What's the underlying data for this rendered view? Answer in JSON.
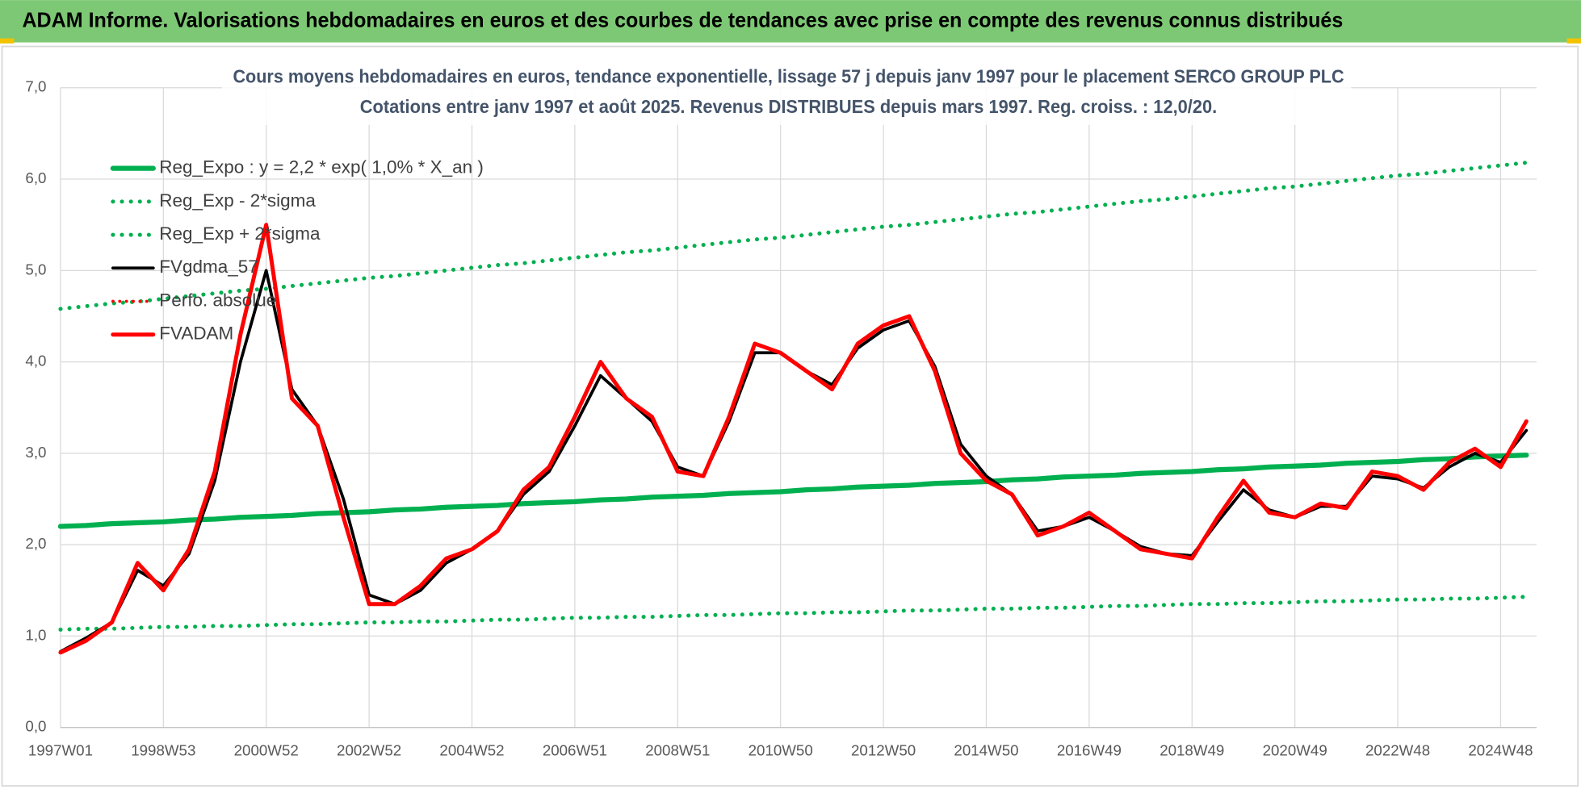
{
  "header": {
    "title": "ADAM Informe. Valorisations hebdomadaires en euros et des courbes de tendances avec prise en compte des revenus connus distribués"
  },
  "chart_data": {
    "type": "line",
    "title": "Cours moyens hebdomadaires en euros, tendance exponentielle, lissage 57 j depuis janv 1997 pour le placement SERCO GROUP PLC",
    "subtitle": "Cotations entre janv 1997 et août 2025. Revenus DISTRIBUES depuis mars 1997. Reg. croiss. : 12,0/20.",
    "categories": [
      "1997W01",
      null,
      null,
      null,
      "1998W53",
      null,
      null,
      null,
      "2000W52",
      null,
      null,
      null,
      "2002W52",
      null,
      null,
      null,
      "2004W52",
      null,
      null,
      null,
      "2006W51",
      null,
      null,
      null,
      "2008W51",
      null,
      null,
      null,
      "2010W50",
      null,
      null,
      null,
      "2012W50",
      null,
      null,
      null,
      "2014W50",
      null,
      null,
      null,
      "2016W49",
      null,
      null,
      null,
      "2018W49",
      null,
      null,
      null,
      "2020W49",
      null,
      null,
      null,
      "2022W48",
      null,
      null,
      null,
      "2024W48",
      null
    ],
    "ylim": [
      0,
      7
    ],
    "yticks": [
      {
        "value": 0,
        "label": "0,0"
      },
      {
        "value": 1,
        "label": "1,0"
      },
      {
        "value": 2,
        "label": "2,0"
      },
      {
        "value": 3,
        "label": "3,0"
      },
      {
        "value": 4,
        "label": "4,0"
      },
      {
        "value": 5,
        "label": "5,0"
      },
      {
        "value": 6,
        "label": "6,0"
      },
      {
        "value": 7,
        "label": "7,0"
      }
    ],
    "grid": true,
    "legend": "top-left",
    "series": [
      {
        "name": "Reg_Expo : y = 2,2 * exp( 1,0% *  X_an )",
        "color": "#00b050",
        "style": "solid",
        "width": 5,
        "values": [
          2.2,
          2.21,
          2.23,
          2.24,
          2.25,
          2.27,
          2.28,
          2.3,
          2.31,
          2.32,
          2.34,
          2.35,
          2.36,
          2.38,
          2.39,
          2.41,
          2.42,
          2.43,
          2.45,
          2.46,
          2.47,
          2.49,
          2.5,
          2.52,
          2.53,
          2.54,
          2.56,
          2.57,
          2.58,
          2.6,
          2.61,
          2.63,
          2.64,
          2.65,
          2.67,
          2.68,
          2.69,
          2.71,
          2.72,
          2.74,
          2.75,
          2.76,
          2.78,
          2.79,
          2.8,
          2.82,
          2.83,
          2.85,
          2.86,
          2.87,
          2.89,
          2.9,
          2.91,
          2.93,
          2.94,
          2.96,
          2.97,
          2.98
        ]
      },
      {
        "name": "Reg_Exp - 2*sigma",
        "color": "#00b050",
        "style": "dotted",
        "width": 4,
        "values": [
          1.07,
          1.08,
          1.08,
          1.09,
          1.1,
          1.1,
          1.11,
          1.11,
          1.12,
          1.13,
          1.13,
          1.14,
          1.15,
          1.15,
          1.16,
          1.16,
          1.17,
          1.18,
          1.18,
          1.19,
          1.2,
          1.2,
          1.21,
          1.21,
          1.22,
          1.23,
          1.23,
          1.24,
          1.25,
          1.25,
          1.26,
          1.26,
          1.27,
          1.28,
          1.28,
          1.29,
          1.3,
          1.3,
          1.31,
          1.31,
          1.32,
          1.33,
          1.33,
          1.34,
          1.35,
          1.35,
          1.36,
          1.36,
          1.37,
          1.38,
          1.38,
          1.39,
          1.4,
          1.4,
          1.41,
          1.41,
          1.42,
          1.43
        ]
      },
      {
        "name": "Reg_Exp + 2*sigma",
        "color": "#00b050",
        "style": "dotted",
        "width": 4,
        "values": [
          4.58,
          4.61,
          4.64,
          4.66,
          4.69,
          4.72,
          4.75,
          4.78,
          4.8,
          4.83,
          4.86,
          4.89,
          4.92,
          4.94,
          4.97,
          5.0,
          5.03,
          5.06,
          5.08,
          5.11,
          5.14,
          5.17,
          5.2,
          5.22,
          5.25,
          5.28,
          5.31,
          5.34,
          5.36,
          5.39,
          5.42,
          5.45,
          5.48,
          5.5,
          5.53,
          5.56,
          5.59,
          5.62,
          5.64,
          5.67,
          5.7,
          5.73,
          5.76,
          5.78,
          5.81,
          5.84,
          5.87,
          5.9,
          5.92,
          5.95,
          5.98,
          6.01,
          6.04,
          6.06,
          6.09,
          6.12,
          6.15,
          6.18
        ]
      },
      {
        "name": "FVgdma_57",
        "color": "#000000",
        "style": "solid",
        "width": 3,
        "values": [
          0.83,
          0.98,
          1.15,
          1.72,
          1.55,
          1.9,
          2.7,
          4.0,
          5.0,
          3.7,
          3.3,
          2.5,
          1.45,
          1.35,
          1.5,
          1.8,
          1.95,
          2.15,
          2.55,
          2.8,
          3.3,
          3.85,
          3.6,
          3.35,
          2.85,
          2.75,
          3.35,
          4.1,
          4.1,
          3.9,
          3.75,
          4.15,
          4.35,
          4.45,
          3.95,
          3.1,
          2.75,
          2.55,
          2.15,
          2.2,
          2.3,
          2.15,
          1.98,
          1.9,
          1.88,
          2.25,
          2.6,
          2.38,
          2.3,
          2.42,
          2.42,
          2.75,
          2.72,
          2.62,
          2.85,
          3.0,
          2.9,
          3.25
        ]
      },
      {
        "name": "Perfo. absolue",
        "color": "#ff0000",
        "style": "dotted",
        "width": 3,
        "values": [
          0.82,
          0.95,
          1.15,
          1.8,
          1.5,
          1.95,
          2.8,
          4.3,
          5.5,
          3.6,
          3.3,
          2.3,
          1.35,
          1.35,
          1.55,
          1.85,
          1.95,
          2.15,
          2.6,
          2.85,
          3.4,
          4.0,
          3.6,
          3.4,
          2.8,
          2.75,
          3.4,
          4.2,
          4.1,
          3.9,
          3.7,
          4.2,
          4.4,
          4.5,
          3.9,
          3.0,
          2.7,
          2.55,
          2.1,
          2.2,
          2.35,
          2.15,
          1.95,
          1.9,
          1.85,
          2.3,
          2.7,
          2.35,
          2.3,
          2.45,
          2.4,
          2.8,
          2.75,
          2.6,
          2.9,
          3.05,
          2.85,
          3.35
        ]
      },
      {
        "name": "FVADAM",
        "color": "#ff0000",
        "style": "solid",
        "width": 4,
        "values": [
          0.82,
          0.95,
          1.15,
          1.8,
          1.5,
          1.95,
          2.8,
          4.3,
          5.5,
          3.6,
          3.3,
          2.3,
          1.35,
          1.35,
          1.55,
          1.85,
          1.95,
          2.15,
          2.6,
          2.85,
          3.4,
          4.0,
          3.6,
          3.4,
          2.8,
          2.75,
          3.4,
          4.2,
          4.1,
          3.9,
          3.7,
          4.2,
          4.4,
          4.5,
          3.9,
          3.0,
          2.7,
          2.55,
          2.1,
          2.2,
          2.35,
          2.15,
          1.95,
          1.9,
          1.85,
          2.3,
          2.7,
          2.35,
          2.3,
          2.45,
          2.4,
          2.8,
          2.75,
          2.6,
          2.9,
          3.05,
          2.85,
          3.35
        ]
      }
    ]
  }
}
